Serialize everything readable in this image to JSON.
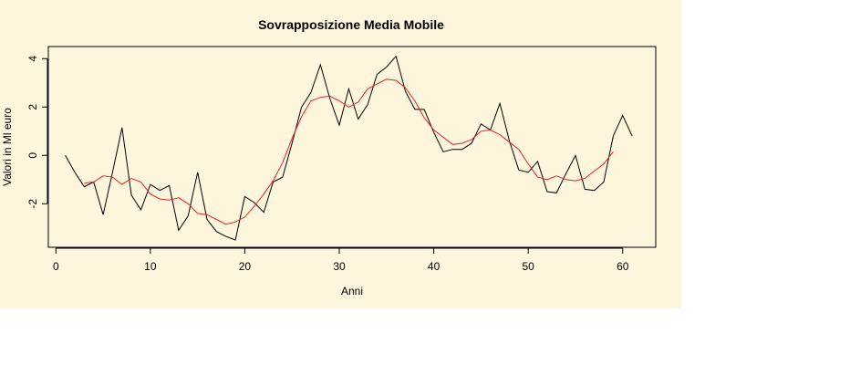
{
  "chart_data": {
    "type": "line",
    "title": "Sovrapposizione Media Mobile",
    "xlabel": "Anni",
    "ylabel": "Valori in Ml euro",
    "xlim": [
      -0.8,
      63.5
    ],
    "ylim": [
      -3.8,
      4.5
    ],
    "xticks": [
      0,
      10,
      20,
      30,
      40,
      50,
      60
    ],
    "yticks": [
      -2,
      0,
      2,
      4
    ],
    "grid": false,
    "colors": {
      "background": "#fdf6dc",
      "series_raw": "#000000",
      "series_ma": "#e8202a"
    },
    "series": [
      {
        "x": [
          1,
          2,
          3,
          4,
          5,
          6,
          7,
          8,
          9,
          10,
          11,
          12,
          13,
          14,
          15,
          16,
          17,
          18,
          19,
          20,
          21,
          22,
          23,
          24,
          25,
          26,
          27,
          28,
          29,
          30,
          31,
          32,
          33,
          34,
          35,
          36,
          37,
          38,
          39,
          40,
          41,
          42,
          43,
          44,
          45,
          46,
          47,
          48,
          49,
          50,
          51,
          52,
          53,
          54,
          55,
          56,
          57,
          58,
          59,
          60,
          61
        ],
        "values": [
          0.0,
          -0.7,
          -1.3,
          -1.1,
          -2.45,
          -0.7,
          1.15,
          -1.65,
          -2.25,
          -1.2,
          -1.45,
          -1.25,
          -3.1,
          -2.5,
          -0.7,
          -2.65,
          -3.15,
          -3.35,
          -3.5,
          -1.7,
          -1.95,
          -2.35,
          -1.1,
          -0.9,
          0.5,
          2.0,
          2.6,
          3.75,
          2.35,
          1.25,
          2.75,
          1.5,
          2.1,
          3.35,
          3.65,
          4.1,
          2.65,
          1.9,
          1.9,
          0.95,
          0.15,
          0.25,
          0.25,
          0.5,
          1.3,
          1.05,
          2.15,
          0.6,
          -0.6,
          -0.7,
          -0.25,
          -1.5,
          -1.55,
          -0.75,
          0.0,
          -1.4,
          -1.45,
          -1.1,
          0.8,
          1.65,
          0.8
        ]
      },
      {
        "x": [
          3,
          4,
          5,
          6,
          7,
          8,
          9,
          10,
          11,
          12,
          13,
          14,
          15,
          16,
          17,
          18,
          19,
          20,
          21,
          22,
          23,
          24,
          25,
          26,
          27,
          28,
          29,
          30,
          31,
          32,
          33,
          34,
          35,
          36,
          37,
          38,
          39,
          40,
          41,
          42,
          43,
          44,
          45,
          46,
          47,
          48,
          49,
          50,
          51,
          52,
          53,
          54,
          55,
          56,
          57,
          58,
          59
        ],
        "values": [
          -1.15,
          -1.1,
          -0.85,
          -0.9,
          -1.2,
          -0.95,
          -1.1,
          -1.6,
          -1.8,
          -1.85,
          -1.75,
          -2.0,
          -2.4,
          -2.45,
          -2.65,
          -2.85,
          -2.75,
          -2.55,
          -2.1,
          -1.6,
          -1.05,
          -0.3,
          0.7,
          1.6,
          2.25,
          2.4,
          2.45,
          2.25,
          2.0,
          2.2,
          2.75,
          2.95,
          3.15,
          3.1,
          2.8,
          2.25,
          1.55,
          1.05,
          0.75,
          0.45,
          0.5,
          0.65,
          1.0,
          1.05,
          0.85,
          0.55,
          0.25,
          -0.35,
          -0.9,
          -1.0,
          -0.85,
          -1.0,
          -1.05,
          -0.95,
          -0.65,
          -0.35,
          0.15
        ]
      }
    ]
  }
}
